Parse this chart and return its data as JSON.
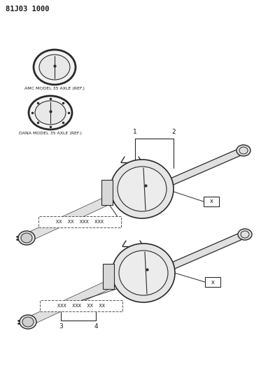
{
  "title_code": "81J03 1000",
  "bg": "#ffffff",
  "lc": "#2a2a2a",
  "tc": "#1a1a1a",
  "amc_label": "AMC MODEL 35 AXLE (REF.)",
  "dana_label": "DANA MODEL 35 AXLE (REF.)",
  "c1": "1",
  "c2": "2",
  "c3": "3",
  "c4": "4",
  "part_top": "XX  XX  XXX  XXX",
  "part_bot": "XXX  XXX  XX  XX",
  "cx_top": "x",
  "cx_bot": "x",
  "figw": 3.93,
  "figh": 5.33,
  "dpi": 100
}
